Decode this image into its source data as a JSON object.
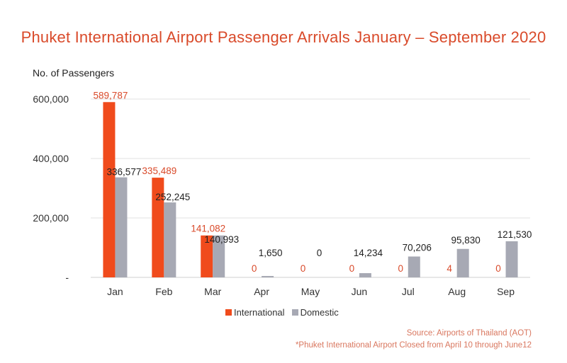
{
  "colors": {
    "international": "#f04b1c",
    "domestic": "#a7a9b4",
    "accent": "#d94a2a",
    "grid": "#e2e2e2"
  },
  "chart_data": {
    "type": "bar",
    "title": "Phuket International Airport Passenger Arrivals January – September 2020",
    "ylabel": "No. of Passengers",
    "xlabel": "",
    "ylim": [
      0,
      600000
    ],
    "yticks": [
      {
        "value": 0,
        "label": "-"
      },
      {
        "value": 200000,
        "label": "200,000"
      },
      {
        "value": 400000,
        "label": "400,000"
      },
      {
        "value": 600000,
        "label": "600,000"
      }
    ],
    "grid": true,
    "legend_position": "bottom",
    "categories": [
      "Jan",
      "Feb",
      "Mar",
      "Apr",
      "May",
      "Jun",
      "Jul",
      "Aug",
      "Sep"
    ],
    "series": [
      {
        "name": "International",
        "values": [
          589787,
          335489,
          141082,
          0,
          0,
          0,
          0,
          4,
          0
        ],
        "labels": [
          "589,787",
          "335,489",
          "141,082",
          "0",
          "0",
          "0",
          "0",
          "4",
          "0"
        ]
      },
      {
        "name": "Domestic",
        "values": [
          336577,
          252245,
          140993,
          1650,
          0,
          14234,
          70206,
          95830,
          121530
        ],
        "labels": [
          "336,577",
          "252,245",
          "140,993",
          "1,650",
          "0",
          "14,234",
          "70,206",
          "95,830",
          "121,530"
        ]
      }
    ]
  },
  "source": {
    "line1": "Source: Airports of Thailand (AOT)",
    "line2": "*Phuket International Airport Closed from April 10 through June12"
  }
}
